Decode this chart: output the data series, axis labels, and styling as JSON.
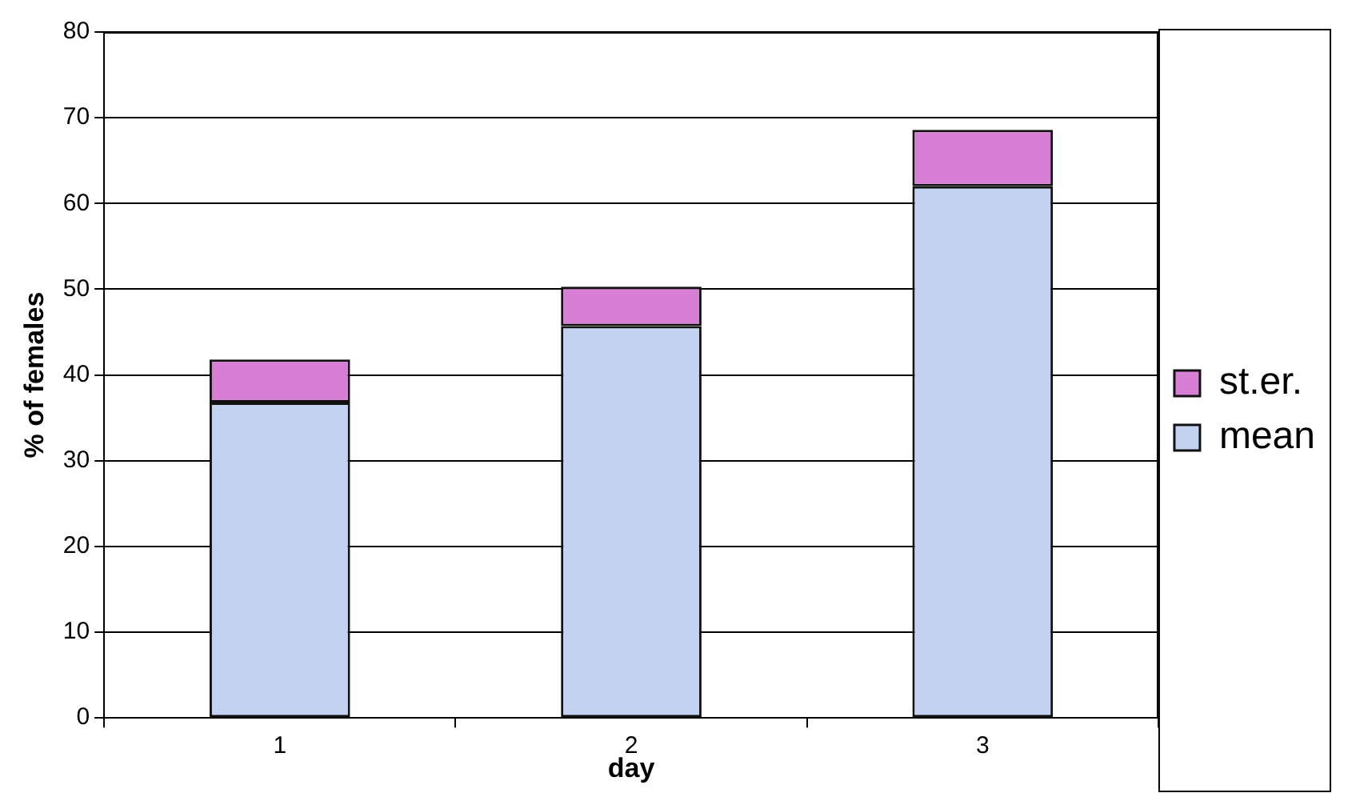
{
  "chart_data": {
    "type": "bar",
    "stacked": true,
    "categories": [
      "1",
      "2",
      "3"
    ],
    "xlabel": "day",
    "ylabel": "% of females",
    "series": [
      {
        "name": "mean",
        "color": "#c4d2f2",
        "values": [
          36.8,
          45.7,
          62
        ]
      },
      {
        "name": "st.er.",
        "color": "#d77fd4",
        "values": [
          5,
          4.6,
          6.6
        ]
      }
    ],
    "ylim": [
      0,
      80
    ],
    "yticks": [
      0,
      10,
      20,
      30,
      40,
      50,
      60,
      70,
      80
    ],
    "grid": "y",
    "legend": "right"
  }
}
